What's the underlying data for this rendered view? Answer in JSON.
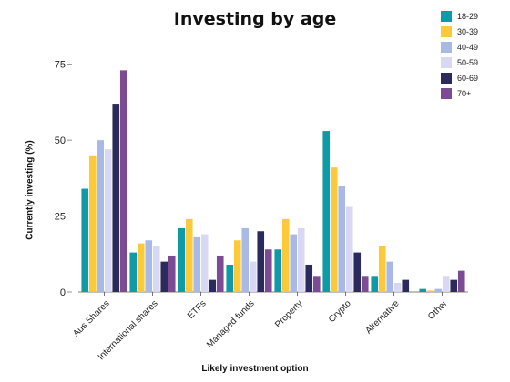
{
  "chart_data": {
    "type": "bar",
    "title": "Investing by age",
    "xlabel": "Likely investment option",
    "ylabel": "Currently investing  (%)",
    "ylim": [
      0,
      80
    ],
    "yticks": [
      0,
      25,
      50,
      75
    ],
    "grid": false,
    "legend": "top-right",
    "categories": [
      "Aus Shares",
      "International shares",
      "ETFs",
      "Managed funds",
      "Property",
      "Crypto",
      "Alternative",
      "Other"
    ],
    "series": [
      {
        "name": "18-29",
        "color": "#0e9aa7",
        "values": [
          34,
          13,
          21,
          9,
          14,
          53,
          5,
          1
        ]
      },
      {
        "name": "30-39",
        "color": "#fcc93b",
        "values": [
          45,
          16,
          24,
          17,
          24,
          41,
          15,
          0.5
        ]
      },
      {
        "name": "40-49",
        "color": "#a9b9e6",
        "values": [
          50,
          17,
          18,
          21,
          19,
          35,
          10,
          1
        ]
      },
      {
        "name": "50-59",
        "color": "#d9d8f2",
        "values": [
          47,
          15,
          19,
          10,
          21,
          28,
          3,
          5
        ]
      },
      {
        "name": "60-69",
        "color": "#2a2a5c",
        "values": [
          62,
          10,
          4,
          20,
          9,
          13,
          4,
          4
        ]
      },
      {
        "name": "70+",
        "color": "#7c4b94",
        "values": [
          73,
          12,
          12,
          14,
          5,
          5,
          0,
          7
        ]
      }
    ]
  }
}
